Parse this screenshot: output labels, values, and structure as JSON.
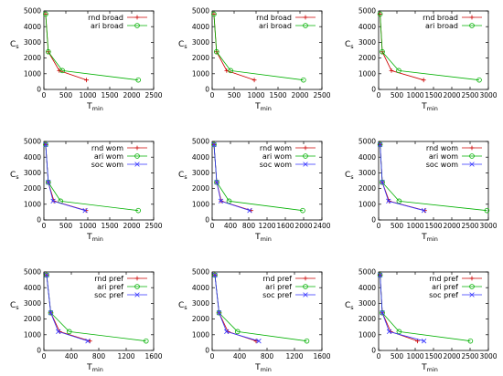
{
  "figure": {
    "xlabel_main": "T",
    "xlabel_sub": "min",
    "ylabel_main": "C",
    "ylabel_sub": "s"
  },
  "chart_data": [
    {
      "type": "line",
      "xlim": [
        0,
        2500
      ],
      "xticks": [
        0,
        500,
        1000,
        1500,
        2000,
        2500
      ],
      "ylim": [
        0,
        5000
      ],
      "yticks": [
        0,
        1000,
        2000,
        3000,
        4000,
        5000
      ],
      "legend": "top-right",
      "series": [
        {
          "name": "rnd broad",
          "color": "#cc0000",
          "marker": "plus",
          "points": [
            [
              40,
              4800
            ],
            [
              100,
              2400
            ],
            [
              350,
              1200
            ],
            [
              970,
              600
            ]
          ]
        },
        {
          "name": "ari broad",
          "color": "#00b000",
          "marker": "circle",
          "points": [
            [
              40,
              4800
            ],
            [
              100,
              2400
            ],
            [
              420,
              1200
            ],
            [
              2150,
              600
            ]
          ]
        }
      ]
    },
    {
      "type": "line",
      "xlim": [
        0,
        2500
      ],
      "xticks": [
        0,
        500,
        1000,
        1500,
        2000,
        2500
      ],
      "ylim": [
        0,
        5000
      ],
      "yticks": [
        0,
        1000,
        2000,
        3000,
        4000,
        5000
      ],
      "legend": "top-right",
      "series": [
        {
          "name": "rnd broad",
          "color": "#cc0000",
          "marker": "plus",
          "points": [
            [
              40,
              4800
            ],
            [
              100,
              2400
            ],
            [
              330,
              1200
            ],
            [
              960,
              600
            ]
          ]
        },
        {
          "name": "ari broad",
          "color": "#00b000",
          "marker": "circle",
          "points": [
            [
              40,
              4800
            ],
            [
              100,
              2400
            ],
            [
              420,
              1200
            ],
            [
              2080,
              600
            ]
          ]
        }
      ]
    },
    {
      "type": "line",
      "xlim": [
        0,
        3000
      ],
      "xticks": [
        0,
        500,
        1000,
        1500,
        2000,
        2500,
        3000
      ],
      "ylim": [
        0,
        5000
      ],
      "yticks": [
        0,
        1000,
        2000,
        3000,
        4000,
        5000
      ],
      "legend": "top-right",
      "series": [
        {
          "name": "rnd broad",
          "color": "#cc0000",
          "marker": "plus",
          "points": [
            [
              40,
              4800
            ],
            [
              100,
              2400
            ],
            [
              350,
              1200
            ],
            [
              1230,
              600
            ]
          ]
        },
        {
          "name": "ari broad",
          "color": "#00b000",
          "marker": "circle",
          "points": [
            [
              40,
              4800
            ],
            [
              100,
              2400
            ],
            [
              550,
              1200
            ],
            [
              2750,
              600
            ]
          ]
        }
      ]
    },
    {
      "type": "line",
      "xlim": [
        0,
        2500
      ],
      "xticks": [
        0,
        500,
        1000,
        1500,
        2000,
        2500
      ],
      "ylim": [
        0,
        5000
      ],
      "yticks": [
        0,
        1000,
        2000,
        3000,
        4000,
        5000
      ],
      "legend": "top-right",
      "series": [
        {
          "name": "rnd wom",
          "color": "#cc0000",
          "marker": "plus",
          "points": [
            [
              40,
              4800
            ],
            [
              100,
              2400
            ],
            [
              230,
              1200
            ],
            [
              960,
              600
            ]
          ]
        },
        {
          "name": "ari wom",
          "color": "#00b000",
          "marker": "circle",
          "points": [
            [
              40,
              4800
            ],
            [
              100,
              2400
            ],
            [
              380,
              1200
            ],
            [
              2150,
              600
            ]
          ]
        },
        {
          "name": "soc wom",
          "color": "#3333ff",
          "marker": "x",
          "points": [
            [
              40,
              4800
            ],
            [
              100,
              2400
            ],
            [
              210,
              1200
            ],
            [
              940,
              600
            ]
          ]
        }
      ]
    },
    {
      "type": "line",
      "xlim": [
        0,
        2400
      ],
      "xticks": [
        0,
        400,
        800,
        1200,
        1600,
        2000,
        2400
      ],
      "ylim": [
        0,
        5000
      ],
      "yticks": [
        0,
        1000,
        2000,
        3000,
        4000,
        5000
      ],
      "legend": "top-right",
      "series": [
        {
          "name": "rnd wom",
          "color": "#cc0000",
          "marker": "plus",
          "points": [
            [
              40,
              4800
            ],
            [
              100,
              2400
            ],
            [
              200,
              1200
            ],
            [
              850,
              600
            ]
          ]
        },
        {
          "name": "ari wom",
          "color": "#00b000",
          "marker": "circle",
          "points": [
            [
              40,
              4800
            ],
            [
              100,
              2400
            ],
            [
              370,
              1200
            ],
            [
              1980,
              600
            ]
          ]
        },
        {
          "name": "soc wom",
          "color": "#3333ff",
          "marker": "x",
          "points": [
            [
              40,
              4800
            ],
            [
              100,
              2400
            ],
            [
              190,
              1200
            ],
            [
              820,
              600
            ]
          ]
        }
      ]
    },
    {
      "type": "line",
      "xlim": [
        0,
        3000
      ],
      "xticks": [
        0,
        500,
        1000,
        1500,
        2000,
        2500,
        3000
      ],
      "ylim": [
        0,
        5000
      ],
      "yticks": [
        0,
        1000,
        2000,
        3000,
        4000,
        5000
      ],
      "legend": "top-right",
      "series": [
        {
          "name": "rnd wom",
          "color": "#cc0000",
          "marker": "plus",
          "points": [
            [
              40,
              4800
            ],
            [
              100,
              2400
            ],
            [
              290,
              1200
            ],
            [
              1260,
              600
            ]
          ]
        },
        {
          "name": "ari wom",
          "color": "#00b000",
          "marker": "circle",
          "points": [
            [
              40,
              4800
            ],
            [
              100,
              2400
            ],
            [
              560,
              1200
            ],
            [
              2960,
              600
            ]
          ]
        },
        {
          "name": "soc wom",
          "color": "#3333ff",
          "marker": "x",
          "points": [
            [
              40,
              4800
            ],
            [
              100,
              2400
            ],
            [
              270,
              1200
            ],
            [
              1240,
              600
            ]
          ]
        }
      ]
    },
    {
      "type": "line",
      "xlim": [
        0,
        1600
      ],
      "xticks": [
        0,
        400,
        800,
        1200,
        1600
      ],
      "ylim": [
        0,
        5000
      ],
      "yticks": [
        0,
        1000,
        2000,
        3000,
        4000,
        5000
      ],
      "legend": "top-right",
      "series": [
        {
          "name": "rnd pref",
          "color": "#cc0000",
          "marker": "plus",
          "points": [
            [
              40,
              4800
            ],
            [
              100,
              2400
            ],
            [
              230,
              1200
            ],
            [
              670,
              600
            ]
          ]
        },
        {
          "name": "ari pref",
          "color": "#00b000",
          "marker": "circle",
          "points": [
            [
              40,
              4800
            ],
            [
              100,
              2400
            ],
            [
              370,
              1200
            ],
            [
              1490,
              600
            ]
          ]
        },
        {
          "name": "soc pref",
          "color": "#3333ff",
          "marker": "x",
          "points": [
            [
              40,
              4800
            ],
            [
              100,
              2400
            ],
            [
              210,
              1200
            ],
            [
              640,
              600
            ]
          ]
        }
      ]
    },
    {
      "type": "line",
      "xlim": [
        0,
        1600
      ],
      "xticks": [
        0,
        400,
        800,
        1200,
        1600
      ],
      "ylim": [
        0,
        5000
      ],
      "yticks": [
        0,
        1000,
        2000,
        3000,
        4000,
        5000
      ],
      "legend": "top-right",
      "series": [
        {
          "name": "rnd pref",
          "color": "#cc0000",
          "marker": "plus",
          "points": [
            [
              40,
              4800
            ],
            [
              100,
              2400
            ],
            [
              230,
              1200
            ],
            [
              640,
              600
            ]
          ]
        },
        {
          "name": "ari pref",
          "color": "#00b000",
          "marker": "circle",
          "points": [
            [
              40,
              4800
            ],
            [
              100,
              2400
            ],
            [
              370,
              1200
            ],
            [
              1380,
              600
            ]
          ]
        },
        {
          "name": "soc pref",
          "color": "#3333ff",
          "marker": "x",
          "points": [
            [
              40,
              4800
            ],
            [
              100,
              2400
            ],
            [
              210,
              1200
            ],
            [
              680,
              600
            ]
          ]
        }
      ]
    },
    {
      "type": "line",
      "xlim": [
        0,
        3000
      ],
      "xticks": [
        0,
        500,
        1000,
        1500,
        2000,
        2500,
        3000
      ],
      "ylim": [
        0,
        5000
      ],
      "yticks": [
        0,
        1000,
        2000,
        3000,
        4000,
        5000
      ],
      "legend": "top-right",
      "series": [
        {
          "name": "rnd pref",
          "color": "#cc0000",
          "marker": "plus",
          "points": [
            [
              40,
              4800
            ],
            [
              100,
              2400
            ],
            [
              330,
              1200
            ],
            [
              1060,
              600
            ]
          ]
        },
        {
          "name": "ari pref",
          "color": "#00b000",
          "marker": "circle",
          "points": [
            [
              40,
              4800
            ],
            [
              100,
              2400
            ],
            [
              560,
              1200
            ],
            [
              2510,
              600
            ]
          ]
        },
        {
          "name": "soc pref",
          "color": "#3333ff",
          "marker": "x",
          "points": [
            [
              40,
              4800
            ],
            [
              100,
              2400
            ],
            [
              290,
              1200
            ],
            [
              1240,
              600
            ]
          ]
        }
      ]
    }
  ]
}
